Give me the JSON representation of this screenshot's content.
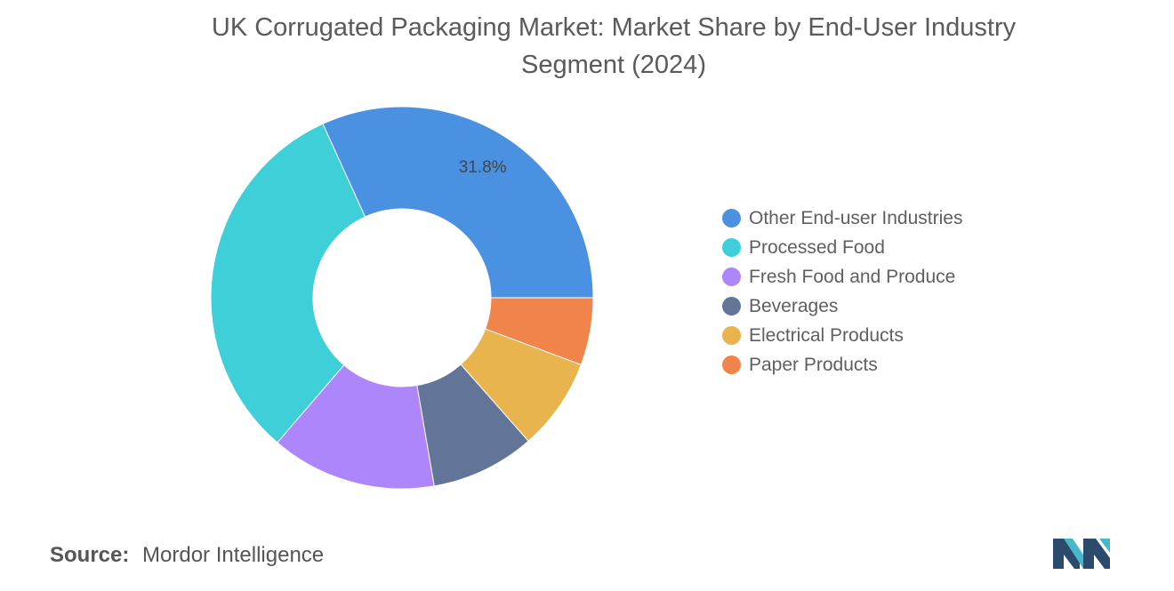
{
  "chart_data": {
    "type": "pie",
    "title_lines": [
      "UK Corrugated Packaging Market: Market Share by End-User Industry",
      "Segment (2024)"
    ],
    "donut": true,
    "slices": [
      {
        "label": "Other End-user Industries",
        "value": 31.8,
        "color": "#4b91e2",
        "data_label": "31.8%"
      },
      {
        "label": "Processed Food",
        "value": 31.9,
        "color": "#3ecfd9",
        "data_label": ""
      },
      {
        "label": "Fresh Food and Produce",
        "value": 14.0,
        "color": "#ae86fb",
        "data_label": ""
      },
      {
        "label": "Beverages",
        "value": 8.8,
        "color": "#627497",
        "data_label": ""
      },
      {
        "label": "Electrical Products",
        "value": 7.8,
        "color": "#e9b34d",
        "data_label": ""
      },
      {
        "label": "Paper Products",
        "value": 5.7,
        "color": "#f0844a",
        "data_label": ""
      }
    ],
    "legend_position": "right"
  },
  "source": {
    "label": "Source:",
    "text": "Mordor Intelligence"
  },
  "logo": {
    "name": "mordor-intelligence-logo",
    "colors": [
      "#2c4a6b",
      "#47b8c9"
    ]
  }
}
